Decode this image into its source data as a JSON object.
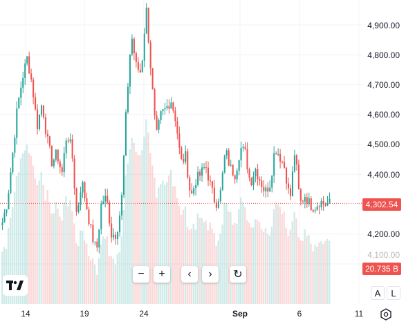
{
  "chart": {
    "logo_name": "TradingView",
    "y_ticks": [
      "4,900.00",
      "4,800.00",
      "4,700.00",
      "4,600.00",
      "4,500.00",
      "4,400.00",
      "4,200.00",
      "4,100.00"
    ],
    "x_ticks": [
      "14",
      "19",
      "24",
      "Sep",
      "6",
      "11"
    ],
    "price_label": "4,302.54",
    "volume_label": "20.735 B",
    "colors": {
      "up": "#26a69a",
      "down": "#ef5350",
      "price_line": "#ef5350",
      "grid": "#f0f3fa"
    }
  },
  "toolbar": {
    "zoom_out": "−",
    "zoom_in": "+",
    "scroll_left": "‹",
    "scroll_right": "›",
    "reset": "↻"
  },
  "scale_buttons": {
    "auto": "A",
    "log": "L"
  },
  "chart_data": {
    "type": "candlestick",
    "y_axis_ticks": [
      4100,
      4200,
      4400,
      4500,
      4600,
      4700,
      4800,
      4900
    ],
    "y_range": [
      4030,
      4960
    ],
    "x_axis_ticks": [
      "14",
      "19",
      "24",
      "Sep",
      "6",
      "11"
    ],
    "last_price": 4302.54,
    "last_volume": "20.735 B",
    "series": [
      {
        "name": "price",
        "close_path": [
          4240,
          4310,
          4460,
          4620,
          4720,
          4790,
          4700,
          4560,
          4640,
          4520,
          4440,
          4470,
          4400,
          4540,
          4480,
          4260,
          4380,
          4290,
          4200,
          4140,
          4310,
          4320,
          4200,
          4200,
          4300,
          4620,
          4870,
          4760,
          4740,
          4960,
          4740,
          4520,
          4600,
          4620,
          4650,
          4580,
          4440,
          4460,
          4320,
          4380,
          4400,
          4430,
          4360,
          4300,
          4340,
          4480,
          4420,
          4400,
          4490,
          4470,
          4370,
          4420,
          4380,
          4340,
          4370,
          4490,
          4460,
          4420,
          4310,
          4480,
          4300,
          4330,
          4300,
          4290,
          4310,
          4300,
          4302.54
        ]
      }
    ]
  }
}
